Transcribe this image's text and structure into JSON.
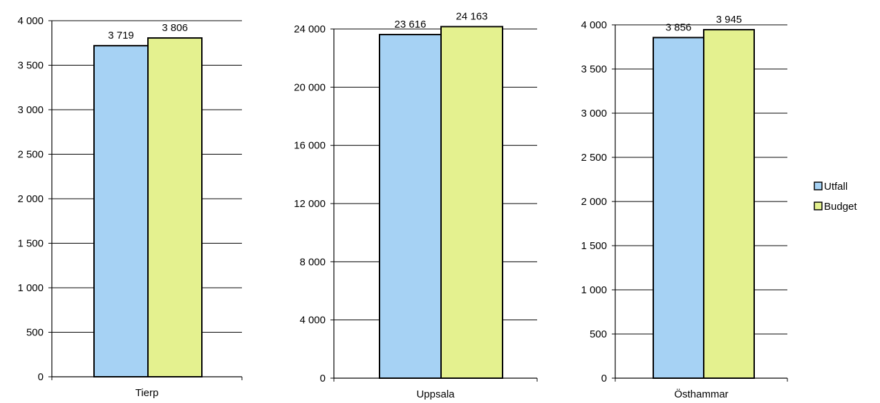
{
  "chart_data": [
    {
      "type": "bar",
      "categories": [
        "Tierp"
      ],
      "series": [
        {
          "name": "Utfall",
          "values": [
            3719
          ],
          "labels": [
            "3 719"
          ]
        },
        {
          "name": "Budget",
          "values": [
            3806
          ],
          "labels": [
            "3 806"
          ]
        }
      ],
      "ylim": [
        0,
        4000
      ],
      "yticks": [
        0,
        500,
        1000,
        1500,
        2000,
        2500,
        3000,
        3500,
        4000
      ],
      "ytick_labels": [
        "0",
        "500",
        "1 000",
        "1 500",
        "2 000",
        "2 500",
        "3 000",
        "3 500",
        "4 000"
      ],
      "grid": true
    },
    {
      "type": "bar",
      "categories": [
        "Uppsala"
      ],
      "series": [
        {
          "name": "Utfall",
          "values": [
            23616
          ],
          "labels": [
            "23 616"
          ]
        },
        {
          "name": "Budget",
          "values": [
            24163
          ],
          "labels": [
            "24 163"
          ]
        }
      ],
      "ylim": [
        0,
        24000
      ],
      "yticks": [
        0,
        4000,
        8000,
        12000,
        16000,
        20000,
        24000
      ],
      "ytick_labels": [
        "0",
        "4 000",
        "8 000",
        "12 000",
        "16 000",
        "20 000",
        "24 000"
      ],
      "grid": true
    },
    {
      "type": "bar",
      "categories": [
        "Östhammar"
      ],
      "series": [
        {
          "name": "Utfall",
          "values": [
            3856
          ],
          "labels": [
            "3 856"
          ]
        },
        {
          "name": "Budget",
          "values": [
            3945
          ],
          "labels": [
            "3 945"
          ]
        }
      ],
      "ylim": [
        0,
        4000
      ],
      "yticks": [
        0,
        500,
        1000,
        1500,
        2000,
        2500,
        3000,
        3500,
        4000
      ],
      "ytick_labels": [
        "0",
        "500",
        "1 000",
        "1 500",
        "2 000",
        "2 500",
        "3 000",
        "3 500",
        "4 000"
      ],
      "grid": true
    }
  ],
  "legend": {
    "placement": "right",
    "items": [
      {
        "label": "Utfall",
        "color": "#a6d2f4"
      },
      {
        "label": "Budget",
        "color": "#e4f18f"
      }
    ]
  },
  "colors": {
    "utfall": "#a6d2f4",
    "budget": "#e4f18f",
    "outline": "#000000"
  }
}
